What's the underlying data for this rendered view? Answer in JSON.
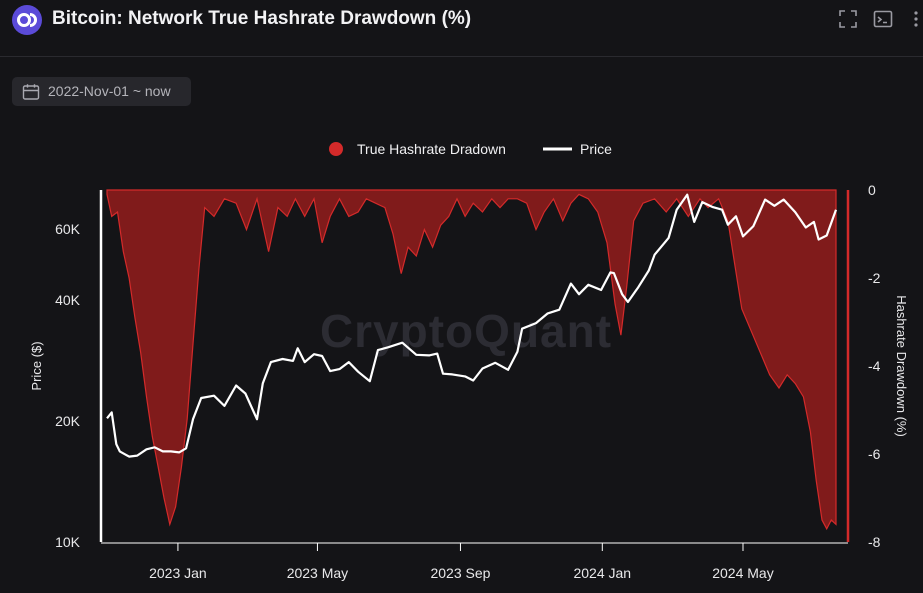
{
  "header": {
    "title": "Bitcoin: Network True Hashrate Drawdown (%)",
    "icons": [
      "logo-icon",
      "fullscreen-icon",
      "terminal-icon",
      "more-icon"
    ]
  },
  "filter": {
    "date_range": "2022-Nov-01 ~ now",
    "icon": "calendar-icon"
  },
  "watermark": "CryptoQuant",
  "colors": {
    "background": "#141417",
    "drawdown": "#8a1c1c",
    "drawdown_edge": "#d42a2a",
    "price": "#ffffff",
    "logo": "#5b4bd8"
  },
  "chart_data": {
    "type": "area",
    "title": "Bitcoin: Network True Hashrate Drawdown (%)",
    "x_ticks": [
      "2023 Jan",
      "2023 May",
      "2023 Sep",
      "2024 Jan",
      "2024 May"
    ],
    "x_range": [
      "2022-11-01",
      "2024-07-20"
    ],
    "y_left": {
      "label": "Price ($)",
      "scale": "log",
      "ticks": [
        10000,
        20000,
        40000,
        60000
      ],
      "tick_labels": [
        "10K",
        "20K",
        "40K",
        "60K"
      ],
      "range": [
        10000,
        75000
      ]
    },
    "y_right": {
      "label": "Hashrate Drawdown (%)",
      "ticks": [
        0,
        -2,
        -4,
        -6,
        -8
      ],
      "tick_labels": [
        "0",
        "-2",
        "-4",
        "-6",
        "-8"
      ],
      "range": [
        -8,
        0
      ]
    },
    "legend": {
      "position": "top-center",
      "entries": [
        "True Hashrate Dradown",
        "Price"
      ]
    },
    "series": [
      {
        "name": "True Hashrate Dradown",
        "type": "area",
        "axis": "right",
        "points": [
          [
            "2022-11-01",
            -0.1
          ],
          [
            "2022-11-05",
            -0.6
          ],
          [
            "2022-11-10",
            -0.5
          ],
          [
            "2022-11-15",
            -1.4
          ],
          [
            "2022-11-20",
            -2.0
          ],
          [
            "2022-11-25",
            -2.9
          ],
          [
            "2022-11-30",
            -3.7
          ],
          [
            "2022-12-05",
            -4.7
          ],
          [
            "2022-12-10",
            -5.6
          ],
          [
            "2022-12-15",
            -6.3
          ],
          [
            "2022-12-20",
            -7.0
          ],
          [
            "2022-12-25",
            -7.6
          ],
          [
            "2022-12-30",
            -7.2
          ],
          [
            "2023-01-04",
            -6.3
          ],
          [
            "2023-01-09",
            -5.2
          ],
          [
            "2023-01-14",
            -3.5
          ],
          [
            "2023-01-19",
            -1.8
          ],
          [
            "2023-01-24",
            -0.4
          ],
          [
            "2023-02-01",
            -0.6
          ],
          [
            "2023-02-10",
            -0.2
          ],
          [
            "2023-02-20",
            -0.3
          ],
          [
            "2023-03-01",
            -0.9
          ],
          [
            "2023-03-10",
            -0.2
          ],
          [
            "2023-03-20",
            -1.4
          ],
          [
            "2023-03-28",
            -0.4
          ],
          [
            "2023-04-05",
            -0.6
          ],
          [
            "2023-04-12",
            -0.2
          ],
          [
            "2023-04-20",
            -0.6
          ],
          [
            "2023-04-28",
            -0.2
          ],
          [
            "2023-05-05",
            -1.2
          ],
          [
            "2023-05-12",
            -0.6
          ],
          [
            "2023-05-20",
            -0.2
          ],
          [
            "2023-05-28",
            -0.6
          ],
          [
            "2023-06-05",
            -0.5
          ],
          [
            "2023-06-12",
            -0.2
          ],
          [
            "2023-06-20",
            -0.3
          ],
          [
            "2023-06-28",
            -0.4
          ],
          [
            "2023-07-05",
            -1.0
          ],
          [
            "2023-07-12",
            -1.9
          ],
          [
            "2023-07-18",
            -1.3
          ],
          [
            "2023-07-25",
            -1.5
          ],
          [
            "2023-08-01",
            -0.9
          ],
          [
            "2023-08-08",
            -1.3
          ],
          [
            "2023-08-15",
            -0.8
          ],
          [
            "2023-08-22",
            -0.6
          ],
          [
            "2023-08-29",
            -0.2
          ],
          [
            "2023-09-05",
            -0.6
          ],
          [
            "2023-09-12",
            -0.3
          ],
          [
            "2023-09-20",
            -0.5
          ],
          [
            "2023-09-28",
            -0.2
          ],
          [
            "2023-10-05",
            -0.4
          ],
          [
            "2023-10-12",
            -0.2
          ],
          [
            "2023-10-20",
            -0.2
          ],
          [
            "2023-10-28",
            -0.3
          ],
          [
            "2023-11-05",
            -0.9
          ],
          [
            "2023-11-12",
            -0.5
          ],
          [
            "2023-11-20",
            -0.2
          ],
          [
            "2023-11-28",
            -0.7
          ],
          [
            "2023-12-05",
            -0.3
          ],
          [
            "2023-12-12",
            -0.1
          ],
          [
            "2023-12-20",
            -0.2
          ],
          [
            "2023-12-28",
            -0.5
          ],
          [
            "2024-01-05",
            -1.2
          ],
          [
            "2024-01-12",
            -2.6
          ],
          [
            "2024-01-17",
            -3.3
          ],
          [
            "2024-01-22",
            -2.2
          ],
          [
            "2024-01-28",
            -0.7
          ],
          [
            "2024-02-05",
            -0.3
          ],
          [
            "2024-02-15",
            -0.2
          ],
          [
            "2024-02-25",
            -0.5
          ],
          [
            "2024-03-05",
            -0.2
          ],
          [
            "2024-03-15",
            -0.6
          ],
          [
            "2024-03-25",
            -0.2
          ],
          [
            "2024-04-01",
            -0.4
          ],
          [
            "2024-04-10",
            -0.2
          ],
          [
            "2024-04-18",
            -0.7
          ],
          [
            "2024-04-24",
            -1.7
          ],
          [
            "2024-04-30",
            -2.7
          ],
          [
            "2024-05-08",
            -3.2
          ],
          [
            "2024-05-16",
            -3.7
          ],
          [
            "2024-05-24",
            -4.2
          ],
          [
            "2024-06-01",
            -4.5
          ],
          [
            "2024-06-08",
            -4.2
          ],
          [
            "2024-06-15",
            -4.4
          ],
          [
            "2024-06-22",
            -4.7
          ],
          [
            "2024-06-28",
            -5.5
          ],
          [
            "2024-07-03",
            -6.6
          ],
          [
            "2024-07-08",
            -7.5
          ],
          [
            "2024-07-12",
            -7.7
          ],
          [
            "2024-07-16",
            -7.5
          ],
          [
            "2024-07-20",
            -7.6
          ]
        ]
      },
      {
        "name": "Price",
        "type": "line",
        "axis": "left",
        "points": [
          [
            "2022-11-01",
            20300
          ],
          [
            "2022-11-05",
            21000
          ],
          [
            "2022-11-09",
            17500
          ],
          [
            "2022-11-12",
            16800
          ],
          [
            "2022-11-20",
            16300
          ],
          [
            "2022-11-27",
            16400
          ],
          [
            "2022-12-05",
            17000
          ],
          [
            "2022-12-12",
            17200
          ],
          [
            "2022-12-19",
            16800
          ],
          [
            "2022-12-26",
            16800
          ],
          [
            "2023-01-02",
            16700
          ],
          [
            "2023-01-08",
            17100
          ],
          [
            "2023-01-14",
            20200
          ],
          [
            "2023-01-21",
            22800
          ],
          [
            "2023-02-01",
            23100
          ],
          [
            "2023-02-10",
            21800
          ],
          [
            "2023-02-20",
            24500
          ],
          [
            "2023-02-28",
            23400
          ],
          [
            "2023-03-10",
            20200
          ],
          [
            "2023-03-15",
            24800
          ],
          [
            "2023-03-22",
            28000
          ],
          [
            "2023-04-01",
            28500
          ],
          [
            "2023-04-10",
            28200
          ],
          [
            "2023-04-14",
            30300
          ],
          [
            "2023-04-20",
            28000
          ],
          [
            "2023-04-28",
            29300
          ],
          [
            "2023-05-05",
            29000
          ],
          [
            "2023-05-12",
            26600
          ],
          [
            "2023-05-20",
            26900
          ],
          [
            "2023-05-28",
            28000
          ],
          [
            "2023-06-05",
            26500
          ],
          [
            "2023-06-15",
            25100
          ],
          [
            "2023-06-22",
            30000
          ],
          [
            "2023-07-01",
            30500
          ],
          [
            "2023-07-13",
            31300
          ],
          [
            "2023-07-25",
            29200
          ],
          [
            "2023-08-05",
            29100
          ],
          [
            "2023-08-12",
            29400
          ],
          [
            "2023-08-17",
            26200
          ],
          [
            "2023-08-25",
            26100
          ],
          [
            "2023-09-05",
            25800
          ],
          [
            "2023-09-12",
            25200
          ],
          [
            "2023-09-20",
            27000
          ],
          [
            "2023-10-01",
            27900
          ],
          [
            "2023-10-12",
            26800
          ],
          [
            "2023-10-20",
            29700
          ],
          [
            "2023-10-24",
            33900
          ],
          [
            "2023-11-05",
            35000
          ],
          [
            "2023-11-15",
            37000
          ],
          [
            "2023-11-25",
            37800
          ],
          [
            "2023-12-05",
            43900
          ],
          [
            "2023-12-12",
            41300
          ],
          [
            "2023-12-20",
            43600
          ],
          [
            "2023-12-31",
            42300
          ],
          [
            "2024-01-08",
            46800
          ],
          [
            "2024-01-11",
            46600
          ],
          [
            "2024-01-18",
            41300
          ],
          [
            "2024-01-23",
            39500
          ],
          [
            "2024-02-01",
            43000
          ],
          [
            "2024-02-10",
            47300
          ],
          [
            "2024-02-15",
            51800
          ],
          [
            "2024-02-27",
            57000
          ],
          [
            "2024-03-05",
            67000
          ],
          [
            "2024-03-14",
            73000
          ],
          [
            "2024-03-20",
            62500
          ],
          [
            "2024-03-27",
            70000
          ],
          [
            "2024-04-05",
            68000
          ],
          [
            "2024-04-13",
            67000
          ],
          [
            "2024-04-18",
            61500
          ],
          [
            "2024-04-25",
            64500
          ],
          [
            "2024-05-01",
            57500
          ],
          [
            "2024-05-10",
            61000
          ],
          [
            "2024-05-20",
            71000
          ],
          [
            "2024-05-28",
            68500
          ],
          [
            "2024-06-05",
            71000
          ],
          [
            "2024-06-15",
            66000
          ],
          [
            "2024-06-24",
            60500
          ],
          [
            "2024-07-01",
            62500
          ],
          [
            "2024-07-05",
            56500
          ],
          [
            "2024-07-12",
            57800
          ],
          [
            "2024-07-20",
            67000
          ]
        ]
      }
    ]
  }
}
